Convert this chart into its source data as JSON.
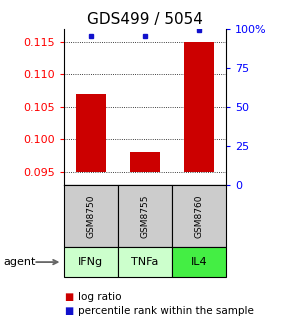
{
  "title": "GDS499 / 5054",
  "samples": [
    "GSM8750",
    "GSM8755",
    "GSM8760"
  ],
  "agents": [
    "IFNg",
    "TNFa",
    "IL4"
  ],
  "log_ratios": [
    0.107,
    0.098,
    0.115
  ],
  "percentile_ranks": [
    95,
    95,
    99
  ],
  "ylim_left": [
    0.093,
    0.117
  ],
  "ylim_right": [
    0,
    100
  ],
  "yticks_left": [
    0.095,
    0.1,
    0.105,
    0.11,
    0.115
  ],
  "yticks_right": [
    0,
    25,
    50,
    75,
    100
  ],
  "ytick_labels_right": [
    "0",
    "25",
    "50",
    "75",
    "100%"
  ],
  "bar_color": "#cc0000",
  "dot_color": "#1111cc",
  "agent_colors": [
    "#ccffcc",
    "#ccffcc",
    "#44ee44"
  ],
  "sample_box_color": "#cccccc",
  "baseline": 0.095,
  "bar_width": 0.55,
  "title_fontsize": 11,
  "tick_fontsize": 8,
  "legend_fontsize": 7.5
}
